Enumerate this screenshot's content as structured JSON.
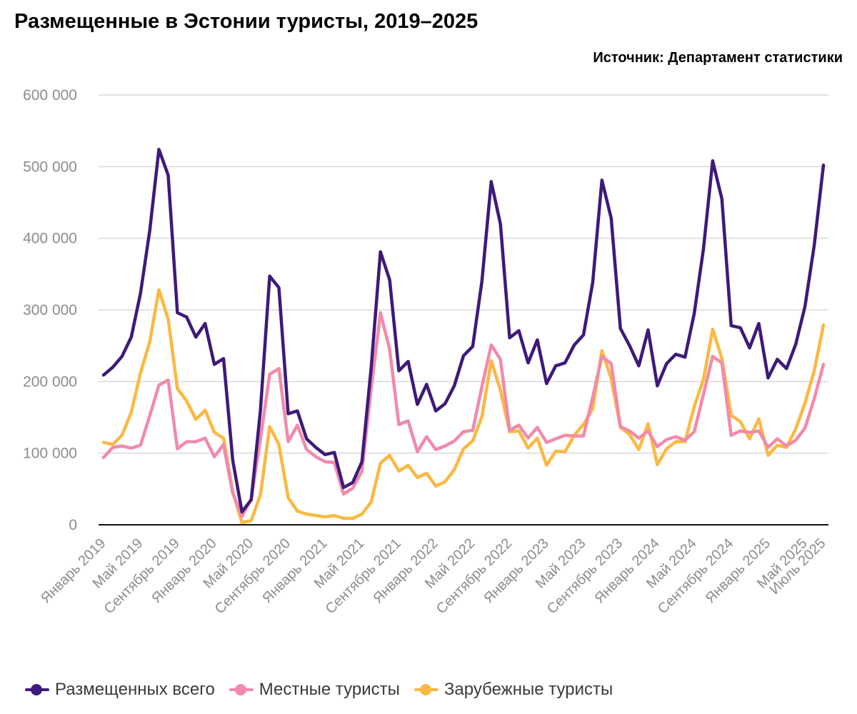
{
  "title": "Размещенные в Эстонии туристы, 2019–2025",
  "source": "Источник: Департамент статистики",
  "chart_data": {
    "type": "line",
    "ylim": [
      0,
      600000
    ],
    "yticks": [
      0,
      100000,
      200000,
      300000,
      400000,
      500000,
      600000
    ],
    "ytick_labels": [
      "0",
      "100 000",
      "200 000",
      "300 000",
      "400 000",
      "500 000",
      "600 000"
    ],
    "grid": true,
    "legend_position": "bottom",
    "x": [
      "2019-01",
      "2019-02",
      "2019-03",
      "2019-04",
      "2019-05",
      "2019-06",
      "2019-07",
      "2019-08",
      "2019-09",
      "2019-10",
      "2019-11",
      "2019-12",
      "2020-01",
      "2020-02",
      "2020-03",
      "2020-04",
      "2020-05",
      "2020-06",
      "2020-07",
      "2020-08",
      "2020-09",
      "2020-10",
      "2020-11",
      "2020-12",
      "2021-01",
      "2021-02",
      "2021-03",
      "2021-04",
      "2021-05",
      "2021-06",
      "2021-07",
      "2021-08",
      "2021-09",
      "2021-10",
      "2021-11",
      "2021-12",
      "2022-01",
      "2022-02",
      "2022-03",
      "2022-04",
      "2022-05",
      "2022-06",
      "2022-07",
      "2022-08",
      "2022-09",
      "2022-10",
      "2022-11",
      "2022-12",
      "2023-01",
      "2023-02",
      "2023-03",
      "2023-04",
      "2023-05",
      "2023-06",
      "2023-07",
      "2023-08",
      "2023-09",
      "2023-10",
      "2023-11",
      "2023-12",
      "2024-01",
      "2024-02",
      "2024-03",
      "2024-04",
      "2024-05",
      "2024-06",
      "2024-07",
      "2024-08",
      "2024-09",
      "2024-10",
      "2024-11",
      "2024-12",
      "2025-01",
      "2025-02",
      "2025-03",
      "2025-04",
      "2025-05",
      "2025-06",
      "2025-07"
    ],
    "x_tick_indices": [
      0,
      4,
      8,
      12,
      16,
      20,
      24,
      28,
      32,
      36,
      40,
      44,
      48,
      52,
      56,
      60,
      64,
      68,
      72,
      76,
      78
    ],
    "x_tick_labels": [
      "Январь 2019",
      "Май 2019",
      "Сентябрь 2019",
      "Январь 2020",
      "Май 2020",
      "Сентябрь 2020",
      "Январь 2021",
      "Май 2021",
      "Сентябрь 2021",
      "Январь 2022",
      "Май 2022",
      "Сентябрь 2022",
      "Январь 2023",
      "Май 2023",
      "Сентябрь 2023",
      "Январь 2024",
      "Май 2024",
      "Сентябрь 2024",
      "Январь 2025",
      "Май 2025",
      "Июль 2025"
    ],
    "series": [
      {
        "name": "Размещенных всего",
        "color": "#3d1a7a",
        "values": [
          209000,
          220000,
          235000,
          262000,
          323000,
          410000,
          524000,
          488000,
          296000,
          290000,
          262000,
          281000,
          224000,
          232000,
          90000,
          18000,
          35000,
          160000,
          347000,
          331000,
          155000,
          159000,
          120000,
          108000,
          98000,
          101000,
          52000,
          59000,
          88000,
          220000,
          381000,
          342000,
          215000,
          228000,
          168000,
          196000,
          159000,
          169000,
          194000,
          236000,
          249000,
          340000,
          479000,
          420000,
          261000,
          271000,
          226000,
          258000,
          197000,
          222000,
          226000,
          251000,
          265000,
          338000,
          481000,
          428000,
          274000,
          250000,
          222000,
          272000,
          194000,
          225000,
          238000,
          234000,
          295000,
          385000,
          508000,
          455000,
          278000,
          275000,
          247000,
          281000,
          205000,
          231000,
          218000,
          252000,
          305000,
          390000,
          502000
        ]
      },
      {
        "name": "Местные туристы",
        "color": "#f28aaa",
        "values": [
          94000,
          108000,
          110000,
          107000,
          111000,
          152000,
          195000,
          202000,
          106000,
          116000,
          116000,
          121000,
          95000,
          112000,
          44000,
          12000,
          36000,
          120000,
          210000,
          218000,
          116000,
          139000,
          105000,
          95000,
          88000,
          87000,
          43000,
          51000,
          75000,
          190000,
          296000,
          245000,
          140000,
          145000,
          102000,
          123000,
          105000,
          110000,
          117000,
          130000,
          132000,
          193000,
          251000,
          231000,
          132000,
          139000,
          121000,
          136000,
          115000,
          120000,
          125000,
          124000,
          124000,
          178000,
          235000,
          225000,
          137000,
          131000,
          121000,
          131000,
          109000,
          119000,
          123000,
          118000,
          130000,
          182000,
          235000,
          226000,
          125000,
          131000,
          129000,
          131000,
          108000,
          120000,
          110000,
          118000,
          135000,
          176000,
          224000
        ]
      },
      {
        "name": "Зарубежные туристы",
        "color": "#fbb842",
        "values": [
          115000,
          112000,
          125000,
          157000,
          212000,
          255000,
          328000,
          287000,
          190000,
          173000,
          147000,
          160000,
          129000,
          121000,
          46000,
          3000,
          6000,
          42000,
          137000,
          112000,
          38000,
          19000,
          15000,
          13000,
          11000,
          13000,
          9000,
          9000,
          15000,
          32000,
          86000,
          97000,
          75000,
          83000,
          66000,
          72000,
          54000,
          60000,
          77000,
          106000,
          117000,
          151000,
          229000,
          188000,
          130000,
          131000,
          107000,
          121000,
          83000,
          103000,
          102000,
          125000,
          140000,
          162000,
          243000,
          204000,
          136000,
          126000,
          105000,
          141000,
          84000,
          106000,
          116000,
          116000,
          165000,
          203000,
          273000,
          232000,
          153000,
          144000,
          120000,
          148000,
          97000,
          111000,
          108000,
          134000,
          170000,
          215000,
          279000
        ]
      }
    ]
  }
}
